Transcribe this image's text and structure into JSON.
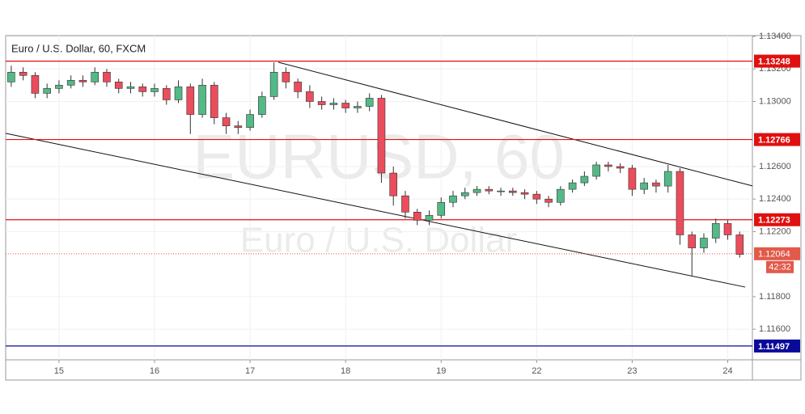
{
  "chart_data": {
    "type": "candlestick",
    "title": "Euro / U.S. Dollar, 60, FXCM",
    "watermark": [
      "EURUSD, 60",
      "Euro / U.S. Dollar"
    ],
    "x": [
      -12,
      -9,
      -6,
      -3,
      0,
      3,
      6,
      9,
      12,
      15,
      18,
      21,
      24,
      27,
      30,
      33,
      36,
      39,
      42,
      45,
      48,
      51,
      54,
      57,
      60,
      63,
      66,
      69,
      72,
      75,
      78,
      81,
      84,
      87,
      90,
      93,
      96,
      99,
      102,
      105,
      108,
      111,
      114,
      117,
      120,
      123,
      126,
      129,
      132,
      135,
      138,
      141,
      144,
      147,
      150,
      153,
      156,
      159,
      162,
      165,
      168,
      171
    ],
    "open": [
      1.1312,
      1.1318,
      1.1316,
      1.1305,
      1.1308,
      1.131,
      1.1313,
      1.1312,
      1.1318,
      1.1312,
      1.1308,
      1.1309,
      1.1306,
      1.1308,
      1.1301,
      1.1309,
      1.1292,
      1.131,
      1.129,
      1.1285,
      1.1284,
      1.1292,
      1.1303,
      1.1318,
      1.1312,
      1.1306,
      1.13,
      1.1298,
      1.1299,
      1.1296,
      1.1297,
      1.1302,
      1.1256,
      1.1242,
      1.1232,
      1.1227,
      1.123,
      1.1238,
      1.1242,
      1.1244,
      1.1246,
      1.1245,
      1.1245,
      1.1244,
      1.1243,
      1.124,
      1.1238,
      1.1246,
      1.125,
      1.1254,
      1.1261,
      1.126,
      1.1259,
      1.1246,
      1.125,
      1.1248,
      1.1257,
      1.1218,
      1.121,
      1.1216,
      1.1225,
      1.1218
    ],
    "high": [
      1.1322,
      1.1321,
      1.1318,
      1.1311,
      1.1313,
      1.1316,
      1.1316,
      1.1321,
      1.132,
      1.1314,
      1.1312,
      1.1311,
      1.1311,
      1.131,
      1.1313,
      1.1311,
      1.1314,
      1.1312,
      1.1293,
      1.1288,
      1.1295,
      1.1306,
      1.1324,
      1.1321,
      1.1314,
      1.131,
      1.1303,
      1.1302,
      1.1301,
      1.13,
      1.1305,
      1.1304,
      1.126,
      1.1245,
      1.1234,
      1.1233,
      1.1241,
      1.1245,
      1.1247,
      1.1248,
      1.1248,
      1.1247,
      1.1247,
      1.1246,
      1.1245,
      1.1242,
      1.1248,
      1.1252,
      1.1257,
      1.1263,
      1.1263,
      1.1262,
      1.1261,
      1.1253,
      1.1252,
      1.1261,
      1.1259,
      1.122,
      1.1219,
      1.1228,
      1.1227,
      1.122
    ],
    "low": [
      1.1309,
      1.1313,
      1.1302,
      1.1302,
      1.1305,
      1.1308,
      1.1309,
      1.131,
      1.1309,
      1.1305,
      1.1305,
      1.1303,
      1.1303,
      1.1298,
      1.1299,
      1.128,
      1.129,
      1.1286,
      1.128,
      1.128,
      1.1282,
      1.129,
      1.1301,
      1.1308,
      1.1302,
      1.1296,
      1.1295,
      1.1295,
      1.1293,
      1.1293,
      1.1294,
      1.125,
      1.1236,
      1.1228,
      1.1224,
      1.1224,
      1.1228,
      1.1235,
      1.124,
      1.1242,
      1.1243,
      1.1242,
      1.1242,
      1.124,
      1.1237,
      1.1235,
      1.1236,
      1.1244,
      1.1248,
      1.1252,
      1.1257,
      1.1256,
      1.1242,
      1.1243,
      1.1244,
      1.1244,
      1.1212,
      1.1193,
      1.1207,
      1.1213,
      1.1215,
      1.1204
    ],
    "close": [
      1.1318,
      1.1316,
      1.1305,
      1.1308,
      1.131,
      1.1313,
      1.1312,
      1.1318,
      1.1312,
      1.1308,
      1.1309,
      1.1306,
      1.1308,
      1.1301,
      1.1309,
      1.1292,
      1.131,
      1.129,
      1.1285,
      1.1284,
      1.1292,
      1.1303,
      1.1318,
      1.1312,
      1.1306,
      1.13,
      1.1298,
      1.1299,
      1.1296,
      1.1297,
      1.1302,
      1.1256,
      1.1242,
      1.1232,
      1.1227,
      1.123,
      1.1238,
      1.1242,
      1.1244,
      1.1246,
      1.1245,
      1.1245,
      1.1244,
      1.1243,
      1.124,
      1.1238,
      1.1246,
      1.125,
      1.1254,
      1.1261,
      1.126,
      1.1259,
      1.1246,
      1.125,
      1.1248,
      1.1257,
      1.1218,
      1.121,
      1.1216,
      1.1225,
      1.1218,
      1.1206
    ],
    "up_color": "#53b987",
    "down_color": "#eb4d5c",
    "xlim": [
      -13.4,
      174.2
    ],
    "xticks": [
      {
        "value": 0,
        "label": "15"
      },
      {
        "value": 24,
        "label": "16"
      },
      {
        "value": 48,
        "label": "17"
      },
      {
        "value": 72,
        "label": "18"
      },
      {
        "value": 96,
        "label": "19"
      },
      {
        "value": 120,
        "label": "22"
      },
      {
        "value": 144,
        "label": "23"
      },
      {
        "value": 168,
        "label": "24"
      }
    ],
    "ylim": [
      1.11412,
      1.13405
    ],
    "yticks": [
      {
        "value": 1.134,
        "label": "1.13400"
      },
      {
        "value": 1.132,
        "label": "1.13200"
      },
      {
        "value": 1.13,
        "label": "1.13000"
      },
      {
        "value": 1.126,
        "label": "1.12600"
      },
      {
        "value": 1.124,
        "label": "1.12400"
      },
      {
        "value": 1.122,
        "label": "1.12200"
      },
      {
        "value": 1.118,
        "label": "1.11800"
      },
      {
        "value": 1.116,
        "label": "1.11600"
      }
    ],
    "grid": true,
    "levels": [
      {
        "value": 1.13248,
        "color": "#e01010"
      },
      {
        "value": 1.12766,
        "color": "#e01010"
      },
      {
        "value": 1.12273,
        "color": "#e01010"
      },
      {
        "value": 1.11497,
        "color": "#0a0a9a"
      }
    ],
    "price_line": {
      "value": 1.12064,
      "countdown": "42:32",
      "color": "#e25a4a"
    },
    "trendlines": [
      {
        "x": [
          55.1,
          174.2
        ],
        "y": [
          1.13241,
          1.12481
        ]
      },
      {
        "x": [
          -13.4,
          172.4
        ],
        "y": [
          1.12804,
          1.11859
        ]
      }
    ]
  }
}
